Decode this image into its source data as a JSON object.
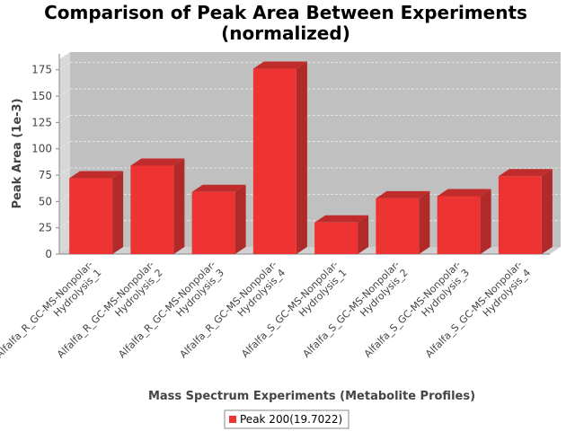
{
  "chart_data": {
    "type": "bar",
    "title": [
      "Comparison of Peak Area Between Experiments",
      "(normalized)"
    ],
    "xlabel": "Mass Spectrum Experiments (Metabolite Profiles)",
    "ylabel": "Peak Area (1e-3)",
    "ylim": [
      0,
      185
    ],
    "yticks": [
      0,
      25,
      50,
      75,
      100,
      125,
      150,
      175
    ],
    "grid": true,
    "legend_position": "bottom",
    "categories": [
      [
        "Alfalfa_R_GC-MS-Nonpolar-",
        "Hydrolysis_1"
      ],
      [
        "Alfalfa_R_GC-MS-Nonpolar-",
        "Hydrolysis_2"
      ],
      [
        "Alfalfa_R_GC-MS-Nonpolar-",
        "Hydrolysis_3"
      ],
      [
        "Alfalfa_R_GC-MS-Nonpolar-",
        "Hydrolysis_4"
      ],
      [
        "Alfalfa_S_GC-MS-Nonpolar-",
        "Hydrolysis_1"
      ],
      [
        "Alfalfa_S_GC-MS-Nonpolar-",
        "Hydrolysis_2"
      ],
      [
        "Alfalfa_S_GC-MS-Nonpolar-",
        "Hydrolysis_3"
      ],
      [
        "Alfalfa_S_GC-MS-Nonpolar-",
        "Hydrolysis_4"
      ]
    ],
    "series": [
      {
        "name": "Peak 200(19.7022)",
        "color": "#ee3333",
        "values": [
          72,
          84,
          59,
          176,
          30,
          53,
          55,
          74
        ]
      }
    ]
  }
}
